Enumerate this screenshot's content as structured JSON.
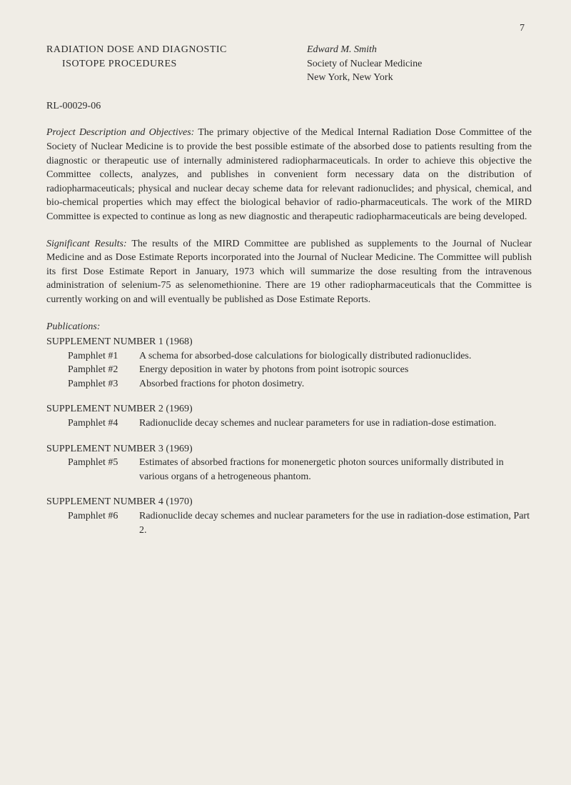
{
  "page_number": "7",
  "header": {
    "title_line1": "RADIATION DOSE AND DIAGNOSTIC",
    "title_line2": "ISOTOPE PROCEDURES",
    "author": "Edward M. Smith",
    "affiliation_line1": "Society of Nuclear Medicine",
    "affiliation_line2": "New York, New York"
  },
  "doc_id": "RL-00029-06",
  "sections": {
    "project_description": {
      "label": "Project Description and Objectives:",
      "text": "The primary objective of the Medical Internal Radiation Dose Committee of the Society of Nuclear Medicine is to provide the best possible estimate of the absorbed dose to patients resulting from the diagnostic or therapeutic use of internally administered radiopharmaceuticals. In order to achieve this objective the Committee collects, analyzes, and publishes in convenient form necessary data on the distribution of radiopharmaceuticals; physical and nuclear decay scheme data for relevant radionuclides; and physical, chemical, and bio-chemical properties which may effect the biological behavior of radio-pharmaceuticals. The work of the MIRD Committee is expected to continue as long as new diagnostic and therapeutic radiopharmaceuticals are being developed."
    },
    "significant_results": {
      "label": "Significant Results:",
      "text": "The results of the MIRD Committee are published as supplements to the Journal of Nuclear Medicine and as Dose Estimate Reports incorporated into the Journal of Nuclear Medicine. The Committee will publish its first Dose Estimate Report in January, 1973 which will summarize the dose resulting from the intravenous administration of selenium-75 as selenomethionine. There are 19 other radiopharmaceuticals that the Committee is currently working on and will eventually be published as Dose Estimate Reports."
    }
  },
  "publications": {
    "header": "Publications:",
    "supplements": [
      {
        "title": "SUPPLEMENT NUMBER 1 (1968)",
        "pamphlets": [
          {
            "label": "Pamphlet #1",
            "text": "A schema for absorbed-dose calculations for biologically distributed radionuclides."
          },
          {
            "label": "Pamphlet #2",
            "text": "Energy deposition in water by photons from point isotropic sources"
          },
          {
            "label": "Pamphlet #3",
            "text": "Absorbed fractions for photon dosimetry."
          }
        ]
      },
      {
        "title": "SUPPLEMENT NUMBER 2 (1969)",
        "pamphlets": [
          {
            "label": "Pamphlet #4",
            "text": "Radionuclide decay schemes and nuclear parameters for use in radiation-dose estimation."
          }
        ]
      },
      {
        "title": "SUPPLEMENT NUMBER 3 (1969)",
        "pamphlets": [
          {
            "label": "Pamphlet #5",
            "text": "Estimates of absorbed fractions for monenergetic photon sources uniformally distributed in various organs of a hetrogeneous phantom."
          }
        ]
      },
      {
        "title": "SUPPLEMENT NUMBER 4 (1970)",
        "pamphlets": [
          {
            "label": "Pamphlet #6",
            "text": "Radionuclide decay schemes and nuclear parameters for the use in radiation-dose estimation, Part 2."
          }
        ]
      }
    ]
  }
}
